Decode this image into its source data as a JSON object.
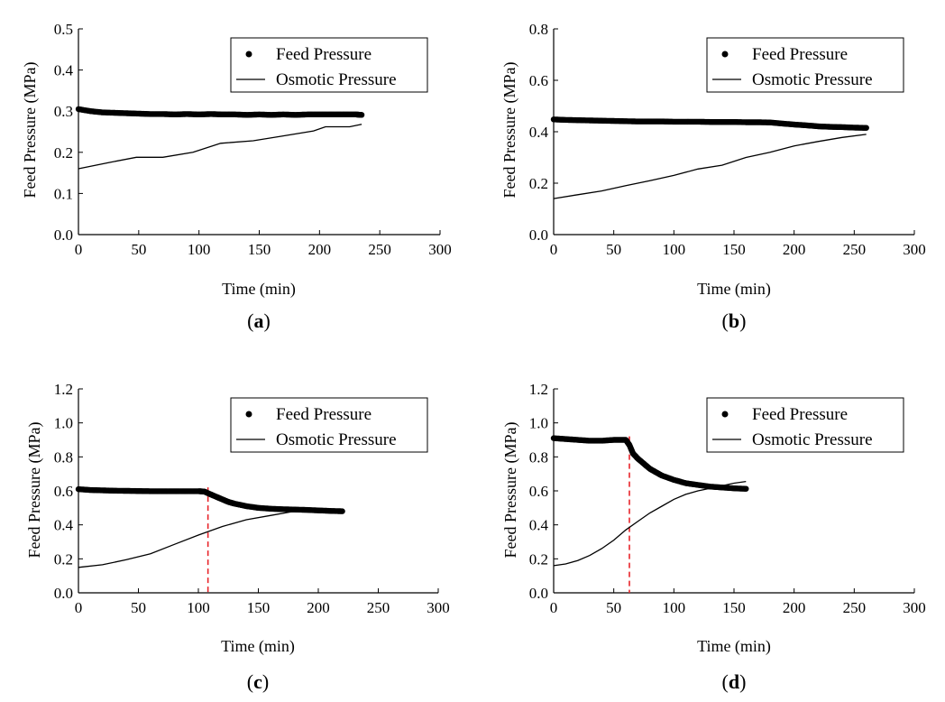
{
  "figure": {
    "panels": [
      {
        "id": "a",
        "caption_open": "(",
        "caption_label": "a",
        "caption_close": ")"
      },
      {
        "id": "b",
        "caption_open": "(",
        "caption_label": "b",
        "caption_close": ")"
      },
      {
        "id": "c",
        "caption_open": "(",
        "caption_label": "c",
        "caption_close": ")"
      },
      {
        "id": "d",
        "caption_open": "(",
        "caption_label": "d",
        "caption_close": ")"
      }
    ]
  },
  "chart_data": [
    {
      "type": "scatter",
      "panel": "a",
      "title": "",
      "xlabel": "Time (min)",
      "ylabel": "Feed Pressure (MPa)",
      "xlim": [
        0,
        300
      ],
      "ylim": [
        0,
        0.5
      ],
      "xticks": [
        0,
        50,
        100,
        150,
        200,
        250,
        300
      ],
      "yticks": [
        0.0,
        0.1,
        0.2,
        0.3,
        0.4,
        0.5
      ],
      "ytick_labels": [
        "0.0",
        "0.1",
        "0.2",
        "0.3",
        "0.4",
        "0.5"
      ],
      "grid": false,
      "legend_position": "top-right",
      "series": [
        {
          "name": "Feed Pressure",
          "style": "markers",
          "x": [
            0,
            10,
            20,
            30,
            40,
            50,
            60,
            70,
            80,
            90,
            100,
            110,
            120,
            130,
            140,
            150,
            160,
            170,
            180,
            190,
            200,
            210,
            220,
            230,
            235
          ],
          "y": [
            0.305,
            0.3,
            0.297,
            0.296,
            0.295,
            0.294,
            0.293,
            0.293,
            0.292,
            0.293,
            0.292,
            0.293,
            0.292,
            0.292,
            0.291,
            0.292,
            0.291,
            0.292,
            0.291,
            0.292,
            0.292,
            0.292,
            0.292,
            0.292,
            0.291
          ]
        },
        {
          "name": "Osmotic Pressure",
          "style": "line",
          "x": [
            0,
            25,
            48,
            70,
            95,
            118,
            145,
            170,
            195,
            205,
            225,
            235
          ],
          "y": [
            0.16,
            0.175,
            0.188,
            0.188,
            0.2,
            0.222,
            0.228,
            0.24,
            0.252,
            0.262,
            0.262,
            0.268
          ]
        }
      ]
    },
    {
      "type": "scatter",
      "panel": "b",
      "title": "",
      "xlabel": "Time (min)",
      "ylabel": "Feed Pressure (MPa)",
      "xlim": [
        0,
        300
      ],
      "ylim": [
        0,
        0.8
      ],
      "xticks": [
        0,
        50,
        100,
        150,
        200,
        250,
        300
      ],
      "yticks": [
        0.0,
        0.2,
        0.4,
        0.6,
        0.8
      ],
      "ytick_labels": [
        "0.0",
        "0.2",
        "0.4",
        "0.6",
        "0.8"
      ],
      "grid": false,
      "legend_position": "top-right",
      "series": [
        {
          "name": "Feed Pressure",
          "style": "markers",
          "x": [
            0,
            10,
            20,
            30,
            40,
            50,
            60,
            70,
            80,
            90,
            100,
            110,
            120,
            130,
            140,
            150,
            160,
            170,
            180,
            190,
            200,
            210,
            220,
            230,
            240,
            250,
            260
          ],
          "y": [
            0.448,
            0.446,
            0.445,
            0.444,
            0.443,
            0.442,
            0.441,
            0.44,
            0.44,
            0.44,
            0.439,
            0.439,
            0.439,
            0.438,
            0.438,
            0.438,
            0.437,
            0.437,
            0.436,
            0.432,
            0.428,
            0.425,
            0.421,
            0.419,
            0.418,
            0.416,
            0.415
          ]
        },
        {
          "name": "Osmotic Pressure",
          "style": "line",
          "x": [
            0,
            20,
            40,
            60,
            80,
            100,
            120,
            140,
            160,
            180,
            200,
            220,
            240,
            260
          ],
          "y": [
            0.14,
            0.155,
            0.17,
            0.19,
            0.21,
            0.23,
            0.255,
            0.27,
            0.3,
            0.32,
            0.345,
            0.362,
            0.378,
            0.39
          ]
        }
      ]
    },
    {
      "type": "scatter",
      "panel": "c",
      "title": "",
      "xlabel": "Time (min)",
      "ylabel": "Feed Pressure (MPa)",
      "xlim": [
        0,
        300
      ],
      "ylim": [
        0,
        1.2
      ],
      "xticks": [
        0,
        50,
        100,
        150,
        200,
        250,
        300
      ],
      "yticks": [
        0.0,
        0.2,
        0.4,
        0.6,
        0.8,
        1.0,
        1.2
      ],
      "ytick_labels": [
        "0.0",
        "0.2",
        "0.4",
        "0.6",
        "0.8",
        "1.0",
        "1.2"
      ],
      "grid": false,
      "legend_position": "top-right",
      "annotations": [
        {
          "type": "vertical-dashed-line",
          "x": 108,
          "color": "#e8242a"
        }
      ],
      "series": [
        {
          "name": "Feed Pressure",
          "style": "markers",
          "x": [
            0,
            10,
            20,
            30,
            40,
            50,
            60,
            70,
            80,
            90,
            100,
            105,
            110,
            115,
            120,
            125,
            130,
            140,
            150,
            160,
            170,
            180,
            190,
            200,
            210,
            220
          ],
          "y": [
            0.61,
            0.605,
            0.603,
            0.601,
            0.6,
            0.599,
            0.598,
            0.598,
            0.598,
            0.598,
            0.598,
            0.596,
            0.58,
            0.565,
            0.55,
            0.535,
            0.525,
            0.51,
            0.5,
            0.495,
            0.492,
            0.49,
            0.488,
            0.485,
            0.482,
            0.48
          ]
        },
        {
          "name": "Osmotic Pressure",
          "style": "line",
          "x": [
            0,
            20,
            40,
            60,
            80,
            100,
            120,
            140,
            160,
            180,
            190
          ],
          "y": [
            0.15,
            0.165,
            0.195,
            0.23,
            0.285,
            0.34,
            0.39,
            0.43,
            0.455,
            0.48,
            0.485
          ]
        }
      ]
    },
    {
      "type": "scatter",
      "panel": "d",
      "title": "",
      "xlabel": "Time (min)",
      "ylabel": "Feed Pressure (MPa)",
      "xlim": [
        0,
        300
      ],
      "ylim": [
        0,
        1.2
      ],
      "xticks": [
        0,
        50,
        100,
        150,
        200,
        250,
        300
      ],
      "yticks": [
        0.0,
        0.2,
        0.4,
        0.6,
        0.8,
        1.0,
        1.2
      ],
      "ytick_labels": [
        "0.0",
        "0.2",
        "0.4",
        "0.6",
        "0.8",
        "1.0",
        "1.2"
      ],
      "grid": false,
      "legend_position": "top-right",
      "annotations": [
        {
          "type": "vertical-dashed-line",
          "x": 63,
          "color": "#e8242a"
        }
      ],
      "series": [
        {
          "name": "Feed Pressure",
          "style": "markers",
          "x": [
            0,
            10,
            20,
            30,
            40,
            50,
            60,
            63,
            66,
            70,
            75,
            80,
            85,
            90,
            100,
            110,
            120,
            130,
            140,
            150,
            160
          ],
          "y": [
            0.91,
            0.905,
            0.9,
            0.895,
            0.895,
            0.9,
            0.9,
            0.87,
            0.82,
            0.79,
            0.76,
            0.73,
            0.71,
            0.69,
            0.665,
            0.645,
            0.635,
            0.625,
            0.62,
            0.615,
            0.612
          ]
        },
        {
          "name": "Osmotic Pressure",
          "style": "line",
          "x": [
            0,
            10,
            20,
            30,
            40,
            50,
            60,
            70,
            80,
            90,
            100,
            110,
            120,
            130,
            140,
            150,
            160
          ],
          "y": [
            0.16,
            0.17,
            0.19,
            0.22,
            0.26,
            0.31,
            0.37,
            0.42,
            0.47,
            0.51,
            0.55,
            0.58,
            0.6,
            0.615,
            0.63,
            0.645,
            0.655
          ]
        }
      ]
    }
  ]
}
